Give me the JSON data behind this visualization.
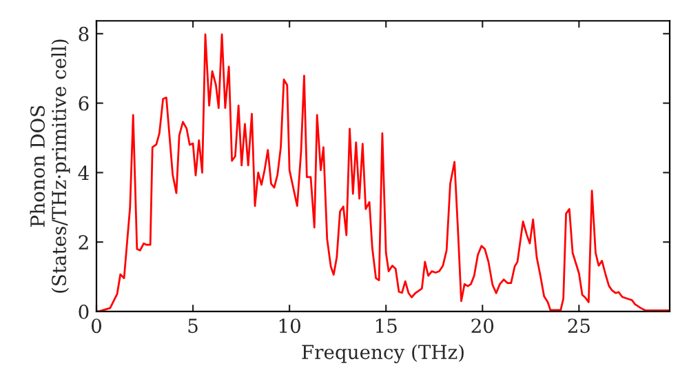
{
  "chart_data": {
    "type": "line",
    "xlabel": "Frequency (THz)",
    "ylabel": "Phonon DOS\n(States/THz·primitive cell)",
    "x": [
      0,
      0.12,
      0.71,
      1.07,
      1.24,
      1.43,
      1.74,
      1.9,
      2.1,
      2.26,
      2.45,
      2.6,
      2.79,
      2.9,
      3.1,
      3.26,
      3.45,
      3.62,
      3.95,
      4.14,
      4.29,
      4.48,
      4.67,
      4.83,
      5.0,
      5.14,
      5.31,
      5.48,
      5.64,
      5.84,
      6.0,
      6.19,
      6.33,
      6.5,
      6.67,
      6.86,
      7.02,
      7.19,
      7.36,
      7.52,
      7.69,
      7.86,
      8.05,
      8.21,
      8.38,
      8.55,
      8.71,
      8.88,
      9.05,
      9.21,
      9.38,
      9.55,
      9.71,
      9.88,
      10.0,
      10.4,
      10.6,
      10.76,
      10.9,
      11.1,
      11.29,
      11.43,
      11.62,
      11.76,
      11.95,
      12.14,
      12.29,
      12.45,
      12.62,
      12.79,
      12.95,
      13.12,
      13.29,
      13.45,
      13.62,
      13.79,
      13.95,
      14.14,
      14.29,
      14.48,
      14.64,
      14.81,
      15.0,
      15.14,
      15.33,
      15.5,
      15.67,
      15.83,
      16.0,
      16.17,
      16.33,
      16.52,
      16.71,
      16.86,
      17.02,
      17.19,
      17.38,
      17.57,
      17.76,
      17.95,
      18.14,
      18.33,
      18.55,
      18.74,
      18.9,
      19.07,
      19.24,
      19.4,
      19.57,
      19.76,
      19.95,
      20.12,
      20.31,
      20.52,
      20.71,
      20.9,
      21.1,
      21.29,
      21.48,
      21.67,
      21.81,
      22.1,
      22.29,
      22.45,
      22.62,
      22.81,
      23.0,
      23.19,
      23.38,
      23.52,
      24.05,
      24.19,
      24.33,
      24.5,
      24.67,
      25.0,
      25.17,
      25.33,
      25.5,
      25.67,
      25.86,
      26.02,
      26.19,
      26.38,
      26.55,
      26.71,
      26.9,
      27.05,
      27.24,
      27.5,
      27.74,
      27.9,
      28.2,
      28.45,
      29.64
    ],
    "series": [
      {
        "color": "#ff0000",
        "values": [
          0,
          0,
          0.1,
          0.5,
          1.07,
          0.96,
          3.0,
          5.66,
          1.8,
          1.76,
          1.96,
          1.92,
          1.92,
          4.73,
          4.81,
          5.13,
          6.12,
          6.16,
          3.94,
          3.41,
          5.07,
          5.46,
          5.27,
          4.8,
          4.84,
          3.92,
          4.93,
          4.0,
          7.98,
          5.93,
          6.92,
          6.52,
          5.86,
          7.98,
          5.86,
          7.05,
          4.34,
          4.47,
          5.93,
          4.21,
          5.4,
          4.21,
          5.69,
          3.04,
          4.0,
          3.65,
          4.07,
          4.65,
          3.68,
          3.57,
          3.94,
          4.73,
          6.68,
          6.52,
          4.07,
          3.04,
          4.6,
          6.79,
          3.87,
          3.87,
          2.42,
          5.66,
          4.07,
          4.73,
          2.09,
          1.3,
          1.06,
          1.56,
          2.88,
          3.02,
          2.2,
          5.26,
          3.39,
          4.87,
          3.25,
          4.83,
          2.95,
          3.15,
          1.83,
          0.96,
          0.9,
          5.13,
          1.69,
          1.16,
          1.32,
          1.23,
          0.57,
          0.54,
          0.87,
          0.53,
          0.41,
          0.53,
          0.6,
          0.66,
          1.43,
          1.03,
          1.16,
          1.12,
          1.16,
          1.32,
          1.76,
          3.68,
          4.31,
          2.22,
          0.3,
          0.79,
          0.73,
          0.79,
          1.03,
          1.63,
          1.89,
          1.8,
          1.43,
          0.77,
          0.53,
          0.79,
          0.92,
          0.82,
          0.82,
          1.3,
          1.43,
          2.59,
          2.22,
          1.96,
          2.65,
          1.56,
          1.03,
          0.44,
          0.27,
          0.04,
          0.04,
          0.37,
          2.82,
          2.95,
          1.69,
          1.1,
          0.48,
          0.4,
          0.27,
          3.48,
          1.69,
          1.32,
          1.46,
          1.06,
          0.74,
          0.61,
          0.53,
          0.56,
          0.42,
          0.37,
          0.33,
          0.21,
          0.1,
          0.03,
          0.03
        ]
      }
    ],
    "xlim": [
      0,
      29.7
    ],
    "ylim": [
      0,
      8.37
    ],
    "xticks": [
      0,
      5,
      10,
      15,
      20,
      25
    ],
    "yticks": [
      0,
      2,
      4,
      6,
      8
    ],
    "grid": false,
    "marker": "none",
    "line_style": "solid"
  }
}
